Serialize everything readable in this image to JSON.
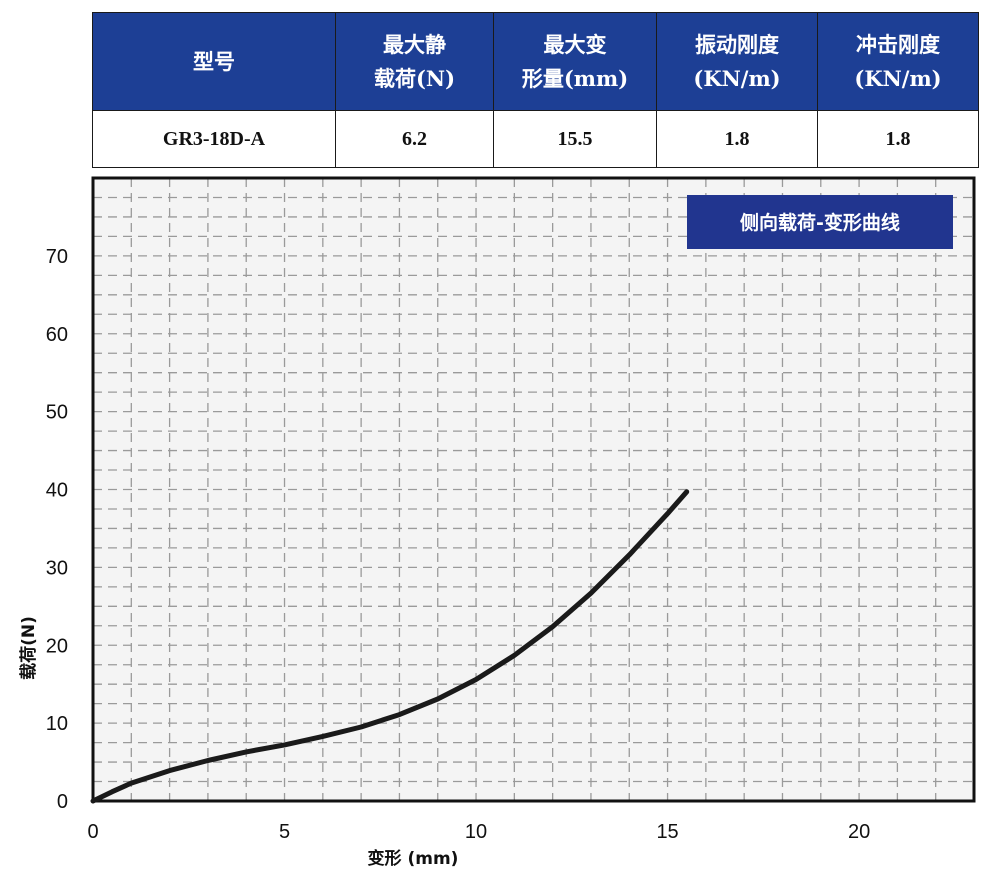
{
  "spec_table": {
    "headers": [
      {
        "line1": "型号",
        "line2": ""
      },
      {
        "line1": "最大静",
        "line2": "载荷(N)"
      },
      {
        "line1": "最大变",
        "line2": "形量(mm)"
      },
      {
        "line1": "振动刚度",
        "line2": "(KN/m)"
      },
      {
        "line1": "冲击刚度",
        "line2": "(KN/m)"
      }
    ],
    "row": {
      "model": "GR3-18D-A",
      "max_static_load": "6.2",
      "max_deformation": "15.5",
      "vibration_stiffness": "1.8",
      "shock_stiffness": "1.8"
    },
    "header_color": "#1d3f95"
  },
  "chart_data": {
    "type": "line",
    "title": "侧向载荷-变形曲线",
    "title_box_color": "#21358f",
    "xlabel": "变形 (mm)",
    "ylabel": "载荷(N)",
    "xlim": [
      0,
      23
    ],
    "ylim": [
      0,
      80
    ],
    "x_ticks": [
      0,
      5,
      10,
      15,
      20
    ],
    "x_tick_labels": [
      "0",
      "5",
      "10",
      "15",
      "20"
    ],
    "y_ticks": [
      0,
      10,
      20,
      30,
      40,
      50,
      60,
      70
    ],
    "y_tick_labels": [
      "0",
      "10",
      "20",
      "30",
      "40",
      "50",
      "60",
      "70"
    ],
    "grid": "dashed",
    "series": [
      {
        "name": "",
        "color": "#1a1a1a",
        "x": [
          0,
          0.5,
          1,
          2,
          3,
          4,
          5,
          6,
          7,
          8,
          9,
          10,
          11,
          12,
          13,
          14,
          15,
          15.5
        ],
        "y": [
          0,
          1.2,
          2.3,
          3.9,
          5.2,
          6.3,
          7.2,
          8.3,
          9.5,
          11.1,
          13.1,
          15.6,
          18.7,
          22.4,
          26.7,
          31.6,
          36.9,
          39.7
        ]
      }
    ]
  }
}
